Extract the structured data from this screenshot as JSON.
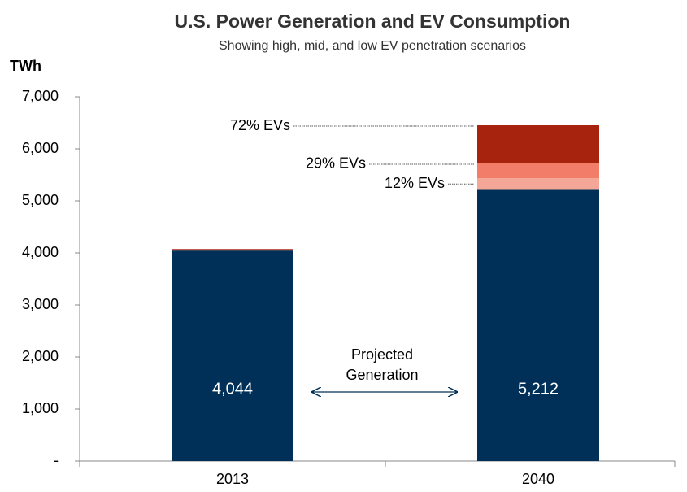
{
  "chart_data": {
    "type": "bar",
    "stacked": true,
    "title": "U.S. Power Generation and EV Consumption",
    "subtitle": "Showing high, mid, and low EV penetration scenarios",
    "y_label": "TWh",
    "categories": [
      "2013",
      "2040"
    ],
    "series": [
      {
        "color": "#003057",
        "values": [
          4044,
          5212
        ],
        "value_labels": [
          "4,044",
          "5,212"
        ]
      },
      {
        "name": "12% EVs",
        "color": "#f4a796",
        "values": [
          null,
          225
        ]
      },
      {
        "name": "29% EVs",
        "color": "#f27e6a",
        "values": [
          null,
          282
        ]
      },
      {
        "name": "72% EVs",
        "color": "#a8230e",
        "values": [
          30,
          734
        ]
      }
    ],
    "annotation": [
      "Projected",
      "Generation"
    ],
    "ylim": [
      0,
      7000
    ],
    "yticks": [
      {
        "value": 0,
        "label": "-"
      },
      {
        "value": 1000,
        "label": "1,000"
      },
      {
        "value": 2000,
        "label": "2,000"
      },
      {
        "value": 3000,
        "label": "3,000"
      },
      {
        "value": 4000,
        "label": "4,000"
      },
      {
        "value": 5000,
        "label": "5,000"
      },
      {
        "value": 6000,
        "label": "6,000"
      },
      {
        "value": 7000,
        "label": "7,000"
      }
    ],
    "grid": false
  }
}
